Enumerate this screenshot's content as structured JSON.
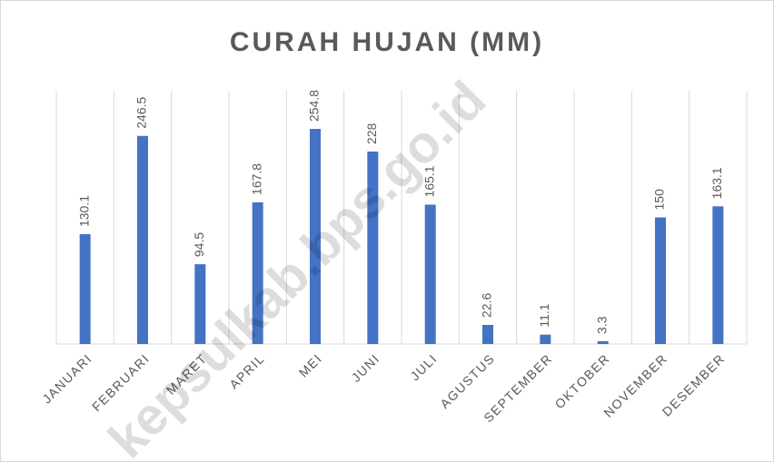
{
  "chart_data": {
    "type": "bar",
    "title": "CURAH HUJAN (MM)",
    "categories": [
      "JANUARI",
      "FEBRUARI",
      "MARET",
      "APRIL",
      "MEI",
      "JUNI",
      "JULI",
      "AGUSTUS",
      "SEPTEMBER",
      "OKTOBER",
      "NOVEMBER",
      "DESEMBER"
    ],
    "values": [
      130.1,
      246.5,
      94.5,
      167.8,
      254.8,
      228,
      165.1,
      22.6,
      11.1,
      3.3,
      150,
      163.1
    ],
    "color": "#4472c4",
    "ylim": [
      0,
      300
    ],
    "watermark": "kepsulkab.bps.go.id"
  }
}
